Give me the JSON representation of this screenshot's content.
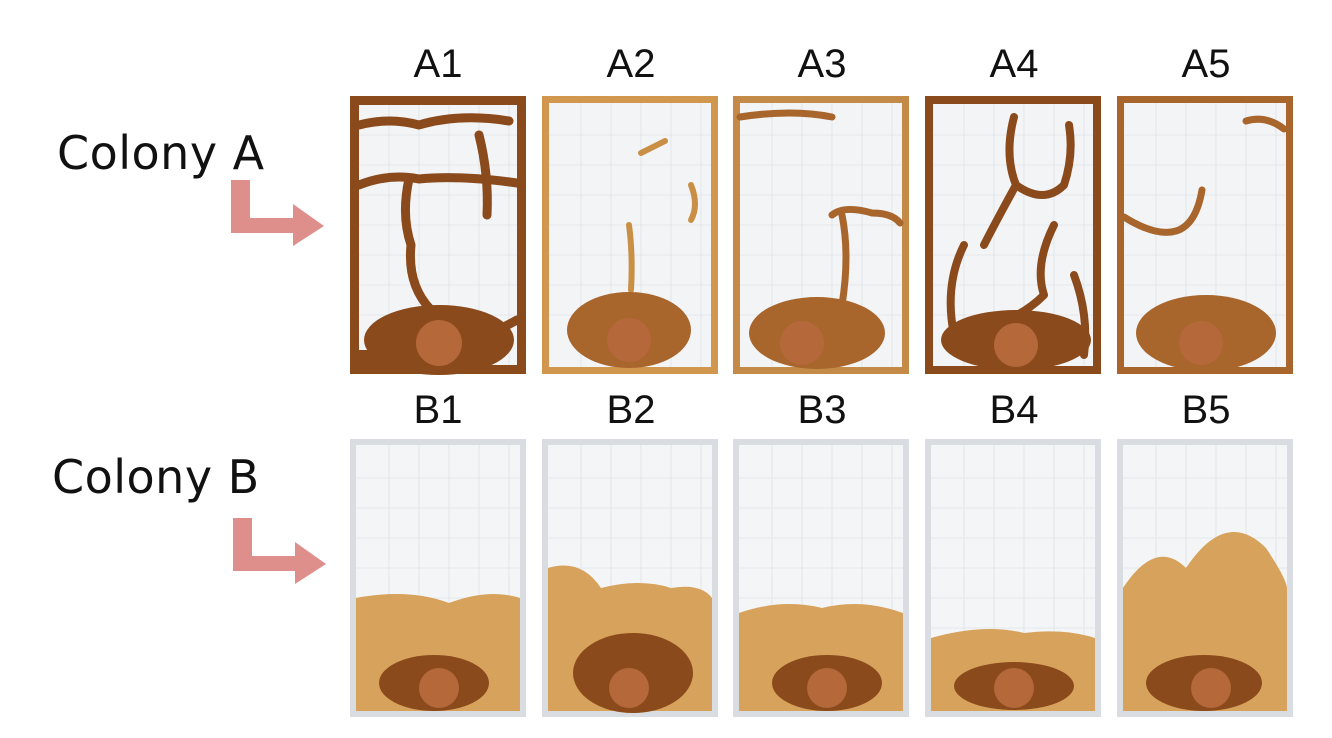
{
  "rows": [
    {
      "label": "Colony A",
      "panels": [
        "A1",
        "A2",
        "A3",
        "A4",
        "A5"
      ]
    },
    {
      "label": "Colony B",
      "panels": [
        "B1",
        "B2",
        "B3",
        "B4",
        "B5"
      ]
    }
  ],
  "colors": {
    "arrow": "#de8f8c",
    "soil_dark": "#8a4a1c",
    "soil_mid": "#a8652c",
    "soil_light": "#c98f45",
    "sand": "#d7a25b",
    "glass": "#f2f4f6",
    "frame": "#c9ced4"
  }
}
